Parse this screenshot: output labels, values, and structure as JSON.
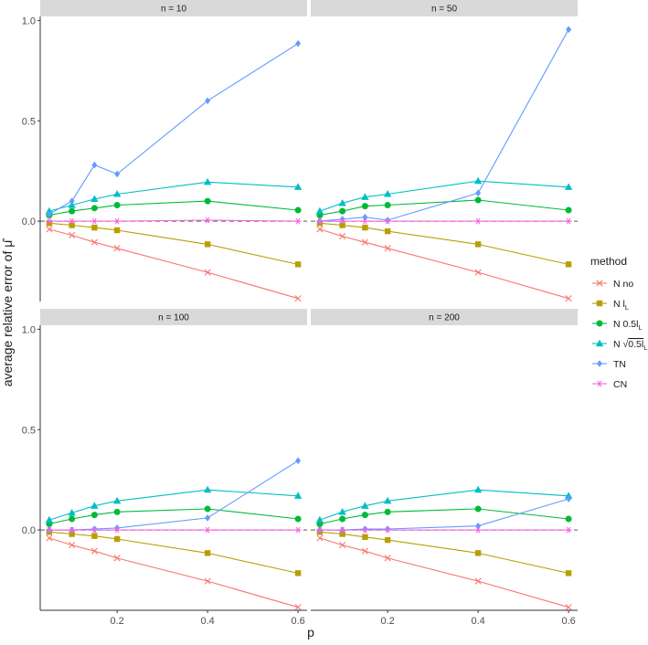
{
  "chart_data": {
    "type": "line",
    "ylabel_main": "average relative error of",
    "ylabel_symbol": "μ̂",
    "xlabel": "p",
    "x": [
      0.05,
      0.1,
      0.15,
      0.2,
      0.4,
      0.6
    ],
    "x_ticks": [
      0.2,
      0.4,
      0.6
    ],
    "x_tick_labels": [
      "0.2",
      "0.4",
      "0.6"
    ],
    "xlim": [
      0.03,
      0.62
    ],
    "y_ticks": [
      0.0,
      0.5,
      1.0
    ],
    "y_tick_labels": [
      "0.0",
      "0.5",
      "1.0"
    ],
    "ylim": [
      -0.4,
      1.02
    ],
    "reference_line_y": 0,
    "colors": {
      "N_no": "#F8766D",
      "N_lL": "#B79F00",
      "N_05lL": "#00BA38",
      "N_sqrt": "#00BFC4",
      "TN": "#619CFF",
      "CN": "#F564E3",
      "ref": "#7a7a7a",
      "strip": "#d9d9d9",
      "axis": "#333333"
    },
    "legend": {
      "title": "method",
      "entries": [
        {
          "key": "N_no",
          "label": "N no"
        },
        {
          "key": "N_lL",
          "label_main": "N l",
          "label_sub": "L"
        },
        {
          "key": "N_05lL",
          "label_main": "N 0.5l",
          "label_sub": "L"
        },
        {
          "key": "N_sqrt",
          "label_main": "N",
          "label_root": "0.5l",
          "label_sub": "L"
        },
        {
          "key": "TN",
          "label": "TN"
        },
        {
          "key": "CN",
          "label": "CN"
        }
      ]
    },
    "panels": [
      {
        "title": "n = 10",
        "series": [
          {
            "key": "N_no",
            "values": [
              -0.04,
              -0.07,
              -0.105,
              -0.135,
              -0.255,
              -0.385
            ]
          },
          {
            "key": "N_lL",
            "values": [
              -0.01,
              -0.02,
              -0.032,
              -0.045,
              -0.115,
              -0.215
            ]
          },
          {
            "key": "N_05lL",
            "values": [
              0.03,
              0.05,
              0.065,
              0.08,
              0.1,
              0.055
            ]
          },
          {
            "key": "N_sqrt",
            "values": [
              0.05,
              0.08,
              0.11,
              0.135,
              0.195,
              0.17
            ]
          },
          {
            "key": "TN",
            "values": [
              0.035,
              0.1,
              0.28,
              0.235,
              0.6,
              0.885
            ]
          },
          {
            "key": "CN",
            "values": [
              0.0,
              0.0,
              0.0,
              0.0,
              0.005,
              0.0
            ]
          }
        ]
      },
      {
        "title": "n = 50",
        "series": [
          {
            "key": "N_no",
            "values": [
              -0.04,
              -0.075,
              -0.105,
              -0.135,
              -0.255,
              -0.385
            ]
          },
          {
            "key": "N_lL",
            "values": [
              -0.01,
              -0.02,
              -0.032,
              -0.05,
              -0.115,
              -0.215
            ]
          },
          {
            "key": "N_05lL",
            "values": [
              0.03,
              0.05,
              0.075,
              0.08,
              0.105,
              0.055
            ]
          },
          {
            "key": "N_sqrt",
            "values": [
              0.05,
              0.09,
              0.12,
              0.135,
              0.2,
              0.17
            ]
          },
          {
            "key": "TN",
            "values": [
              0.0,
              0.01,
              0.02,
              0.005,
              0.14,
              0.955
            ]
          },
          {
            "key": "CN",
            "values": [
              0.0,
              0.0,
              0.0,
              0.0,
              0.0,
              0.0
            ]
          }
        ]
      },
      {
        "title": "n = 100",
        "series": [
          {
            "key": "N_no",
            "values": [
              -0.04,
              -0.075,
              -0.105,
              -0.14,
              -0.255,
              -0.385
            ]
          },
          {
            "key": "N_lL",
            "values": [
              -0.01,
              -0.02,
              -0.03,
              -0.045,
              -0.115,
              -0.215
            ]
          },
          {
            "key": "N_05lL",
            "values": [
              0.03,
              0.055,
              0.075,
              0.09,
              0.105,
              0.055
            ]
          },
          {
            "key": "N_sqrt",
            "values": [
              0.05,
              0.085,
              0.12,
              0.145,
              0.2,
              0.17
            ]
          },
          {
            "key": "TN",
            "values": [
              0.0,
              0.0,
              0.005,
              0.01,
              0.06,
              0.345
            ]
          },
          {
            "key": "CN",
            "values": [
              0.0,
              0.0,
              0.0,
              0.0,
              0.0,
              0.0
            ]
          }
        ]
      },
      {
        "title": "n = 200",
        "series": [
          {
            "key": "N_no",
            "values": [
              -0.04,
              -0.075,
              -0.105,
              -0.14,
              -0.255,
              -0.385
            ]
          },
          {
            "key": "N_lL",
            "values": [
              -0.01,
              -0.02,
              -0.035,
              -0.05,
              -0.115,
              -0.215
            ]
          },
          {
            "key": "N_05lL",
            "values": [
              0.03,
              0.055,
              0.075,
              0.09,
              0.105,
              0.055
            ]
          },
          {
            "key": "N_sqrt",
            "values": [
              0.05,
              0.09,
              0.12,
              0.145,
              0.2,
              0.17
            ]
          },
          {
            "key": "TN",
            "values": [
              0.0,
              0.0,
              0.005,
              0.005,
              0.02,
              0.155
            ]
          },
          {
            "key": "CN",
            "values": [
              0.0,
              0.0,
              0.0,
              0.0,
              0.0,
              0.0
            ]
          }
        ]
      }
    ]
  }
}
